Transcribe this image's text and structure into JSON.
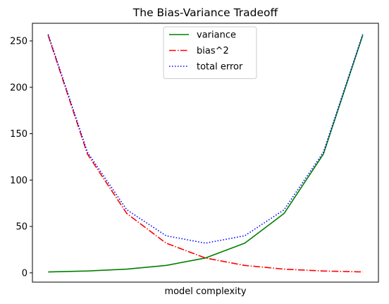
{
  "chart_data": {
    "type": "line",
    "title": "The Bias-Variance Tradeoff",
    "xlabel": "model complexity",
    "ylabel": "",
    "x": [
      0,
      1,
      2,
      3,
      4,
      5,
      6,
      7,
      8
    ],
    "xlim": [
      -0.4,
      8.4
    ],
    "ylim": [
      -10,
      269
    ],
    "yticks": [
      0,
      50,
      100,
      150,
      200,
      250
    ],
    "xticks_visible": false,
    "grid": false,
    "legend_position": "top-center",
    "series": [
      {
        "name": "variance",
        "values": [
          1,
          2,
          4,
          8,
          16,
          32,
          64,
          128,
          256
        ],
        "color": "#008000",
        "style": "solid"
      },
      {
        "name": "bias^2",
        "values": [
          256,
          128,
          64,
          32,
          16,
          8,
          4,
          2,
          1
        ],
        "color": "#ff0000",
        "style": "dashdot"
      },
      {
        "name": "total error",
        "values": [
          257,
          130,
          68,
          40,
          32,
          40,
          68,
          130,
          257
        ],
        "color": "#0000ff",
        "style": "dotted"
      }
    ]
  }
}
